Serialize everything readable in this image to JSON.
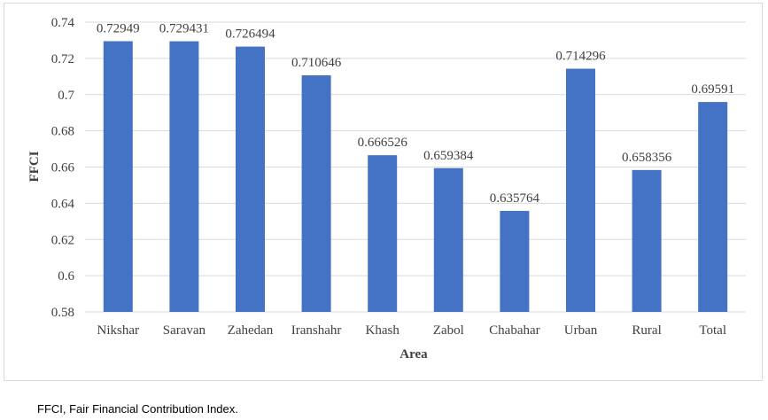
{
  "chart_data": {
    "type": "bar",
    "categories": [
      "Nikshar",
      "Saravan",
      "Zahedan",
      "Iranshahr",
      "Khash",
      "Zabol",
      "Chabahar",
      "Urban",
      "Rural",
      "Total"
    ],
    "values": [
      0.72949,
      0.729431,
      0.726494,
      0.710646,
      0.666526,
      0.659384,
      0.635764,
      0.714296,
      0.658356,
      0.69591
    ],
    "value_labels": [
      "0.72949",
      "0.729431",
      "0.726494",
      "0.710646",
      "0.666526",
      "0.659384",
      "0.635764",
      "0.714296",
      "0.658356",
      "0.69591"
    ],
    "xlabel": "Area",
    "ylabel": "FFCI",
    "ylim": [
      0.58,
      0.74
    ],
    "yticks": [
      0.58,
      0.6,
      0.62,
      0.64,
      0.66,
      0.68,
      0.7,
      0.72,
      0.74
    ],
    "ytick_labels": [
      "0.58",
      "0.6",
      "0.62",
      "0.64",
      "0.66",
      "0.68",
      "0.7",
      "0.72",
      "0.74"
    ],
    "grid": true,
    "bar_color": "#4472c4",
    "grid_color": "#d9d9d9"
  },
  "footnote": "FFCI, Fair Financial Contribution Index."
}
